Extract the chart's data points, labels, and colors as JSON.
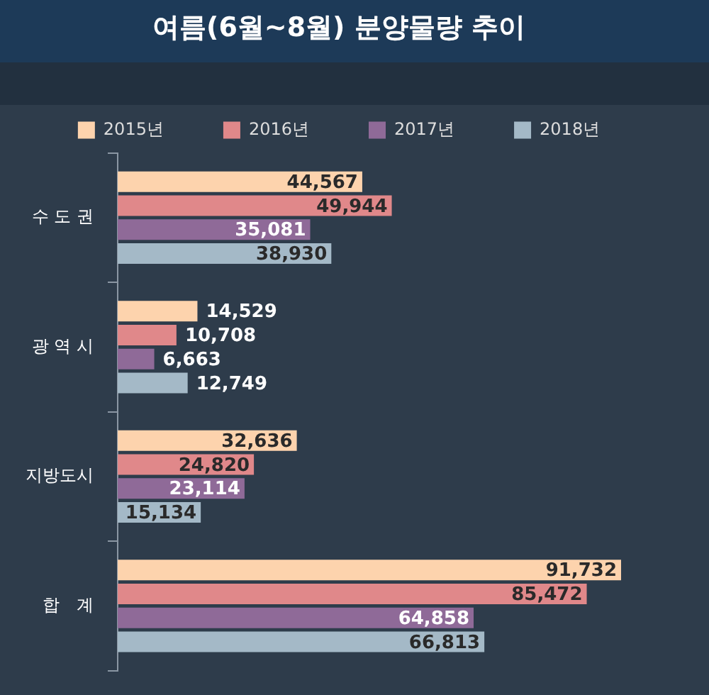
{
  "chart_data": {
    "type": "bar",
    "orientation": "horizontal",
    "title": "여름(6월~8월) 분양물량 추이",
    "categories": [
      "수 도 권",
      "광 역 시",
      "지방도시",
      "합　계"
    ],
    "series": [
      {
        "name": "2015년",
        "color": "#fdd3ad",
        "values": [
          44567,
          14529,
          32636,
          91732
        ],
        "value_labels": [
          "44,567",
          "14,529",
          "32,636",
          "91,732"
        ]
      },
      {
        "name": "2016년",
        "color": "#e0888a",
        "values": [
          49944,
          10708,
          24820,
          85472
        ],
        "value_labels": [
          "49,944",
          "10,708",
          "24,820",
          "85,472"
        ]
      },
      {
        "name": "2017년",
        "color": "#8f6a98",
        "values": [
          35081,
          6663,
          23114,
          64858
        ],
        "value_labels": [
          "35,081",
          "6,663",
          "23,114",
          "64,858"
        ]
      },
      {
        "name": "2018년",
        "color": "#a4b9c7",
        "values": [
          38930,
          12749,
          15134,
          66813
        ],
        "value_labels": [
          "38,930",
          "12,749",
          "15,134",
          "66,813"
        ]
      }
    ],
    "legend": "top",
    "tick_labels": "y"
  }
}
